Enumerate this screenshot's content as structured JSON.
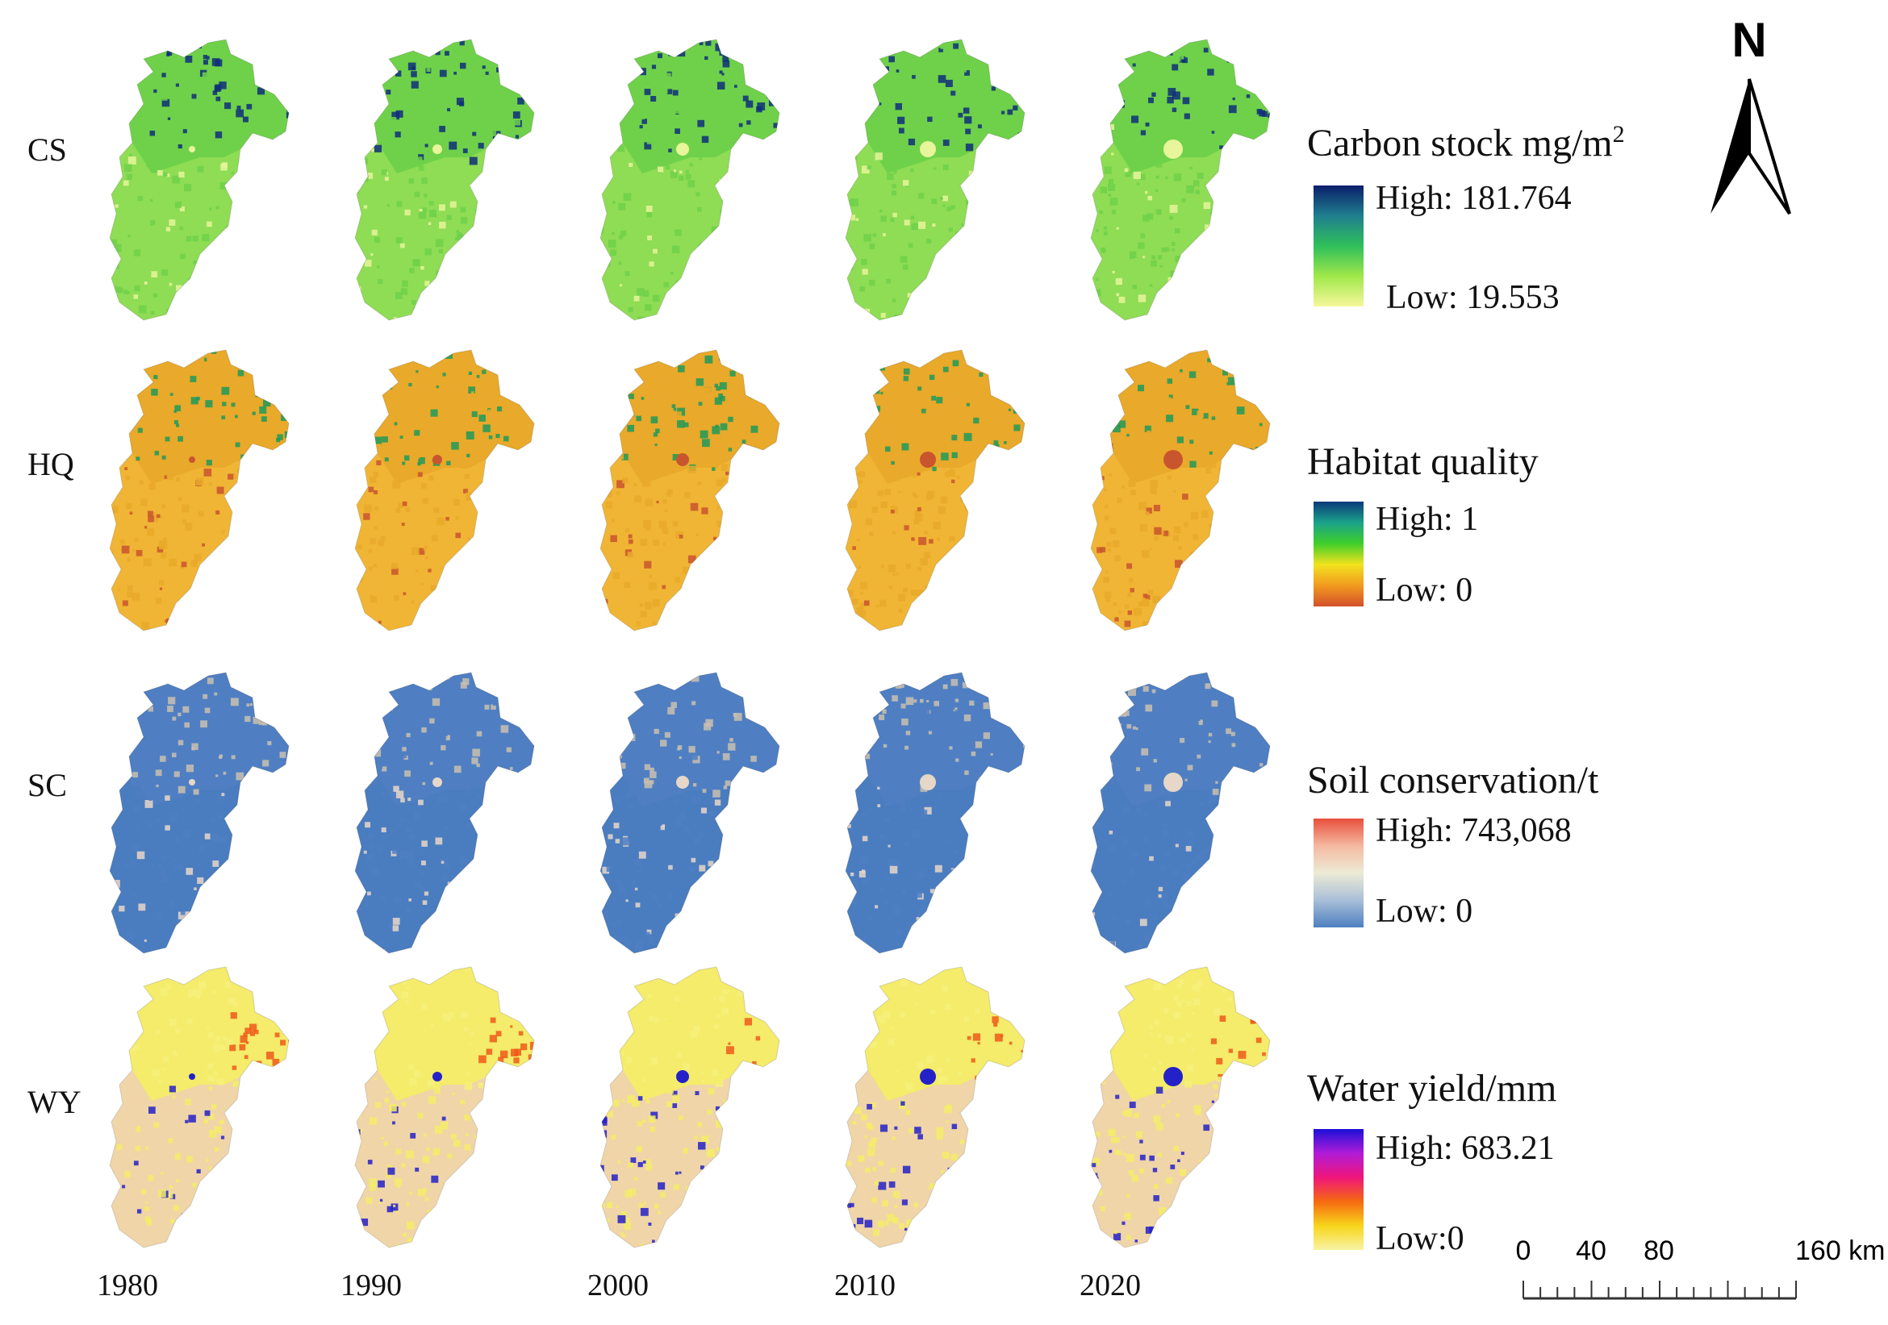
{
  "rows": [
    {
      "label": "CS"
    },
    {
      "label": "HQ"
    },
    {
      "label": "SC"
    },
    {
      "label": "WY"
    }
  ],
  "years": [
    "1980",
    "1990",
    "2000",
    "2010",
    "2020"
  ],
  "legends": {
    "cs": {
      "title": "Carbon stock mg/m",
      "superscript": "2",
      "high": "High: 181.764",
      "low": "Low: 19.553",
      "colors": [
        "#0b1f6b",
        "#1f7f8f",
        "#2fbf5a",
        "#9fe84a",
        "#f7f79a"
      ]
    },
    "hq": {
      "title": "Habitat quality",
      "high": "High: 1",
      "low": "Low: 0",
      "colors": [
        "#0b3a7a",
        "#1aa28a",
        "#3fcf2a",
        "#f2e21e",
        "#f29a1e",
        "#d2502a"
      ]
    },
    "sc": {
      "title": "Soil conservation/t",
      "high": "High: 743,068",
      "low": "Low: 0",
      "colors": [
        "#e84f3c",
        "#f5b9a0",
        "#ecebd5",
        "#a8bfd8",
        "#4d7fc0"
      ]
    },
    "wy": {
      "title": "Water yield/mm",
      "high": "High: 683.21",
      "low": "Low:0",
      "colors": [
        "#1a0fd8",
        "#b01cd8",
        "#f0157a",
        "#f56a10",
        "#f7d61a",
        "#f8f3a4"
      ]
    }
  },
  "map_colors": {
    "cs": {
      "base": "#6fd14a",
      "plain": "#8fdc55",
      "north": "#0f2f7a",
      "spot": "#e8f59a"
    },
    "hq": {
      "base": "#e9a92a",
      "plain": "#f0b534",
      "north": "#1f9a5a",
      "spot": "#c9552f"
    },
    "sc": {
      "base": "#4f7fc2",
      "plain": "#4a7cc0",
      "north": "#c9bfaf",
      "spot": "#e7d7c8"
    },
    "wy": {
      "base": "#f4ec6a",
      "plain": "#f0d5a8",
      "north": "#f6f07a",
      "spot": "#2421c8",
      "coast": "#ee5a1a"
    }
  },
  "north_arrow": {
    "letter": "N"
  },
  "scale_bar": {
    "ticks": [
      "0",
      "40",
      "80",
      "160 km"
    ]
  }
}
